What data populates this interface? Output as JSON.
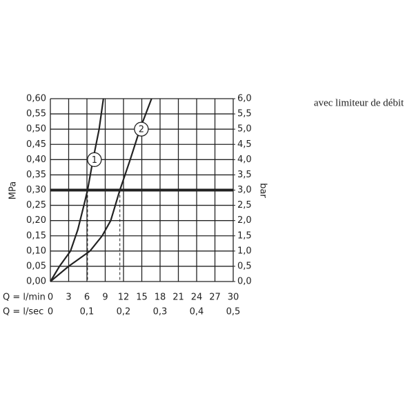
{
  "chart_data": {
    "type": "line",
    "title": "avec limiteur de débit",
    "y_label": "MPa",
    "y2_label": "bar",
    "x_row_label": "Q = l/min",
    "x2_row_label": "Q = l/sec",
    "xlim": [
      0,
      30
    ],
    "xticks": [
      0,
      3,
      6,
      9,
      12,
      15,
      18,
      21,
      24,
      27,
      30
    ],
    "x2lim": [
      0,
      0.5
    ],
    "x2ticks": [
      {
        "value": 0,
        "label": "0"
      },
      {
        "value": 0.1,
        "label": "0,1"
      },
      {
        "value": 0.2,
        "label": "0,2"
      },
      {
        "value": 0.3,
        "label": "0,3"
      },
      {
        "value": 0.4,
        "label": "0,4"
      },
      {
        "value": 0.5,
        "label": "0,5"
      }
    ],
    "ylim": [
      0,
      0.6
    ],
    "yticks": [
      {
        "value": 0,
        "label": "0,00"
      },
      {
        "value": 0.05,
        "label": "0,05"
      },
      {
        "value": 0.1,
        "label": "0,10"
      },
      {
        "value": 0.15,
        "label": "0,15"
      },
      {
        "value": 0.2,
        "label": "0,20"
      },
      {
        "value": 0.25,
        "label": "0,25"
      },
      {
        "value": 0.3,
        "label": "0,30"
      },
      {
        "value": 0.35,
        "label": "0,35"
      },
      {
        "value": 0.4,
        "label": "0,40"
      },
      {
        "value": 0.45,
        "label": "0,45"
      },
      {
        "value": 0.5,
        "label": "0,50"
      },
      {
        "value": 0.55,
        "label": "0,55"
      },
      {
        "value": 0.6,
        "label": "0,60"
      }
    ],
    "y2lim": [
      0,
      6
    ],
    "y2ticks": [
      {
        "value": 0,
        "label": "0,0"
      },
      {
        "value": 0.5,
        "label": "0,5"
      },
      {
        "value": 1,
        "label": "1,0"
      },
      {
        "value": 1.5,
        "label": "1,5"
      },
      {
        "value": 2,
        "label": "2,0"
      },
      {
        "value": 2.5,
        "label": "2,5"
      },
      {
        "value": 3,
        "label": "3,0"
      },
      {
        "value": 3.5,
        "label": "3,5"
      },
      {
        "value": 4,
        "label": "4,0"
      },
      {
        "value": 4.5,
        "label": "4,5"
      },
      {
        "value": 5,
        "label": "5,0"
      },
      {
        "value": 5.5,
        "label": "5,5"
      },
      {
        "value": 6,
        "label": "6,0"
      }
    ],
    "grid": true,
    "reference_line": 0.3,
    "series": [
      {
        "name": "1",
        "color": "#222222",
        "x": [
          0,
          1.5,
          3.3,
          4.5,
          5.5,
          6.1,
          7,
          8,
          8.7
        ],
        "values": [
          0,
          0.05,
          0.1,
          0.17,
          0.25,
          0.3,
          0.4,
          0.5,
          0.6
        ]
      },
      {
        "name": "2",
        "color": "#222222",
        "x": [
          0,
          3,
          6.5,
          8.5,
          9.9,
          11.4,
          13.1,
          14.7,
          16.6
        ],
        "values": [
          0,
          0.05,
          0.1,
          0.15,
          0.2,
          0.3,
          0.4,
          0.5,
          0.6
        ]
      }
    ]
  }
}
